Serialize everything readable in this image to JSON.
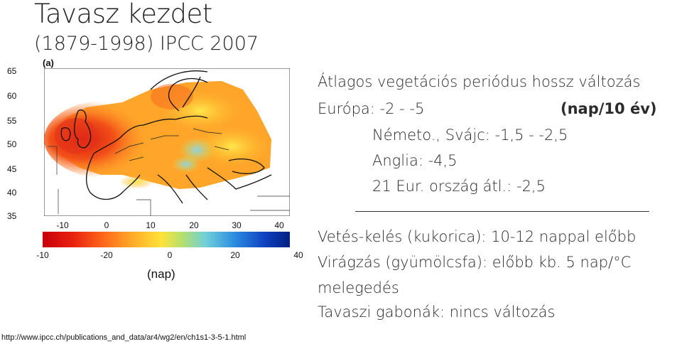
{
  "title": "Tavasz kezdet",
  "subtitle": "(1879-1998) IPCC 2007",
  "figure_label": "(a)",
  "map": {
    "lat_labels": [
      "65",
      "60",
      "55",
      "50",
      "45",
      "40",
      "35"
    ],
    "lon_labels": [
      "-10",
      "0",
      "10",
      "20",
      "30",
      "40"
    ],
    "colorbar_labels": [
      "-10",
      "-20",
      "0",
      "20",
      "40"
    ],
    "unit": "(nap)",
    "colorscale": [
      "#cc0000",
      "#e83010",
      "#ff6a1a",
      "#ffae2a",
      "#ffe33a",
      "#bfe86a",
      "#6fcfd8",
      "#1f6fd8",
      "#0033a0"
    ]
  },
  "source_url": "http://www.ipcc.ch/publications_and_data/ar4/wg2/en/ch1s1-3-5-1.html",
  "text": {
    "line1": "Átlagos vegetációs periódus hossz változás",
    "line2_a": "Európa: -2 - -5",
    "line2_b": "(nap/10 év)",
    "line3": "Németo., Svájc: -1,5 - -2,5",
    "line4": "Anglia: -4,5",
    "line5": "21 Eur. ország átl.: -2,5",
    "line6": "Vetés-kelés (kukorica): 10-12 nappal előbb",
    "line7": "Virágzás (gyümölcsfa): előbb kb. 5 nap/°C",
    "line8": "melegedés",
    "line9": "Tavaszi gabonák: nincs változás"
  }
}
